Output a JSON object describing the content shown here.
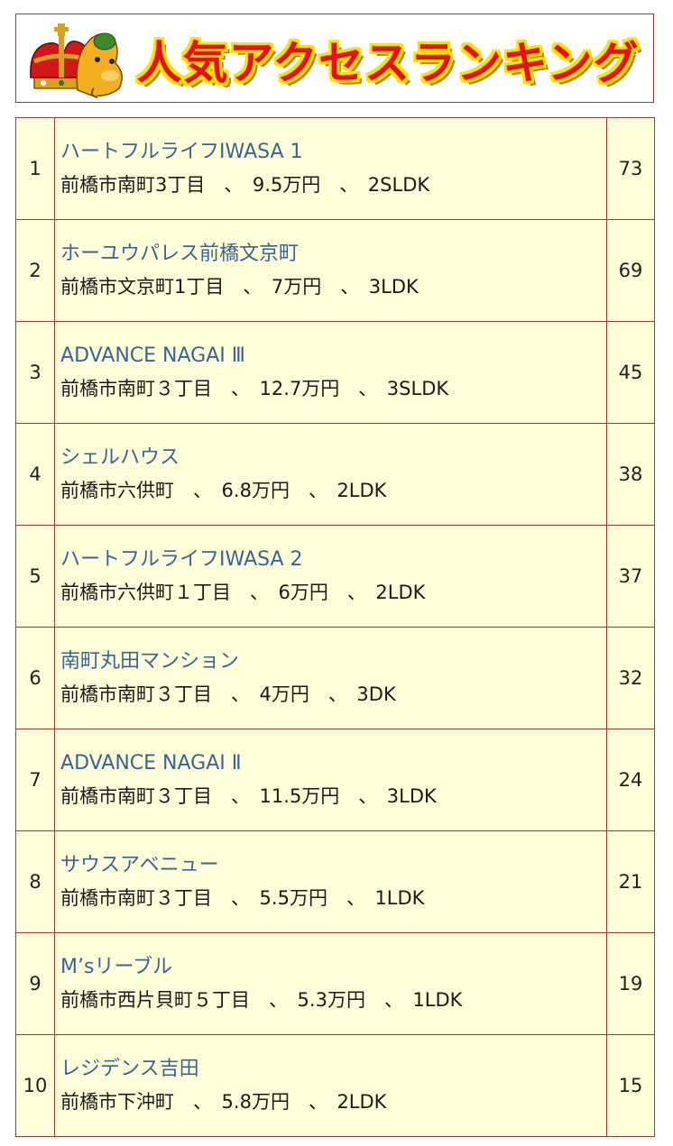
{
  "header": {
    "title": "人気アクセスランキング"
  },
  "ranking": [
    {
      "rank": "1",
      "name": "ハートフルライフIWASA 1",
      "detail": "前橋市南町3丁目　、　9.5万円　、　2SLDK",
      "count": "73"
    },
    {
      "rank": "2",
      "name": "ホーユウパレス前橋文京町",
      "detail": "前橋市文京町1丁目　、　7万円　、　3LDK",
      "count": "69"
    },
    {
      "rank": "3",
      "name": "ADVANCE NAGAI Ⅲ",
      "detail": "前橋市南町３丁目　、　12.7万円　、　3SLDK",
      "count": "45"
    },
    {
      "rank": "4",
      "name": "シェルハウス",
      "detail": "前橋市六供町　、　6.8万円　、　2LDK",
      "count": "38"
    },
    {
      "rank": "5",
      "name": "ハートフルライフIWASA 2",
      "detail": "前橋市六供町１丁目　、　6万円　、　2LDK",
      "count": "37"
    },
    {
      "rank": "6",
      "name": "南町丸田マンション",
      "detail": "前橋市南町３丁目　、　4万円　、　3DK",
      "count": "32"
    },
    {
      "rank": "7",
      "name": "ADVANCE NAGAI Ⅱ",
      "detail": "前橋市南町３丁目　、　11.5万円　、　3LDK",
      "count": "24"
    },
    {
      "rank": "8",
      "name": "サウスアベニュー",
      "detail": "前橋市南町３丁目　、　5.5万円　、　1LDK",
      "count": "21"
    },
    {
      "rank": "9",
      "name": "M’sリーブル",
      "detail": "前橋市西片貝町５丁目　、　5.3万円　、　1LDK",
      "count": "19"
    },
    {
      "rank": "10",
      "name": "レジデンス吉田",
      "detail": "前橋市下沖町　、　5.8万円　、　2LDK",
      "count": "15"
    }
  ]
}
